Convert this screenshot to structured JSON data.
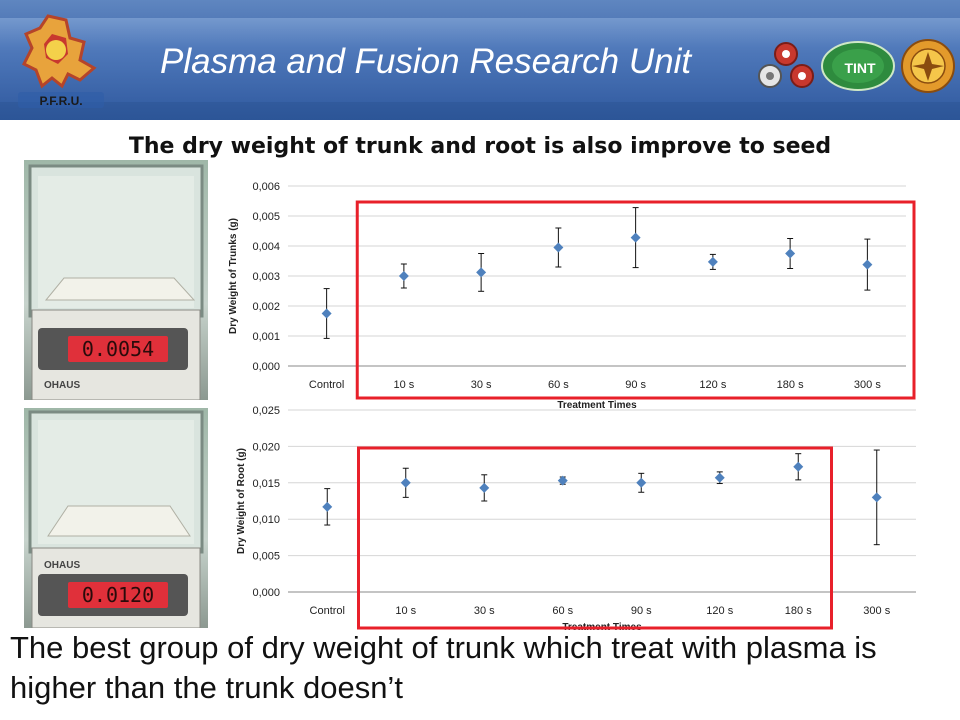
{
  "header": {
    "title": "Plasma and Fusion Research Unit",
    "left_logo_text": "P.F.R.U.",
    "right_logo_text": "TINT"
  },
  "slide_title": "The  dry weight of trunk and root is also improve to seed",
  "photos": [
    {
      "readout": "0.0054",
      "brand": "OHAUS"
    },
    {
      "readout": "0.0120",
      "brand": "OHAUS"
    }
  ],
  "chart_data": [
    {
      "type": "scatter",
      "categories": [
        "Control",
        "10 s",
        "30 s",
        "60 s",
        "90 s",
        "120 s",
        "180 s",
        "300 s"
      ],
      "values": [
        0.00175,
        0.003,
        0.00312,
        0.00395,
        0.00428,
        0.00347,
        0.00375,
        0.00338
      ],
      "errors": [
        0.00083,
        0.0004,
        0.00063,
        0.00065,
        0.001,
        0.00025,
        0.0005,
        0.00085
      ],
      "xlabel": "Treatment Times",
      "ylabel": "Dry Weight of Trunks (g)",
      "ylim": [
        0,
        0.006
      ],
      "yticks": [
        "0,000",
        "0,001",
        "0,002",
        "0,003",
        "0,004",
        "0,005",
        "0,006"
      ],
      "grid": true,
      "color": "#4f81bd",
      "highlight": {
        "from": "10 s",
        "to": "300 s",
        "color": "#e8202a"
      }
    },
    {
      "type": "scatter",
      "categories": [
        "Control",
        "10 s",
        "30 s",
        "60 s",
        "90 s",
        "120 s",
        "180 s",
        "300 s"
      ],
      "values": [
        0.0117,
        0.015,
        0.0143,
        0.0153,
        0.015,
        0.0157,
        0.0172,
        0.013
      ],
      "errors": [
        0.0025,
        0.002,
        0.0018,
        0.0005,
        0.0013,
        0.0008,
        0.0018,
        0.0065
      ],
      "xlabel": "Treatment Times",
      "ylabel": "Dry Weight of Root (g)",
      "ylim": [
        0,
        0.025
      ],
      "yticks": [
        "0,000",
        "0,005",
        "0,010",
        "0,015",
        "0,020",
        "0,025"
      ],
      "grid": true,
      "color": "#4f81bd",
      "highlight": {
        "from": "10 s",
        "to": "180 s",
        "color": "#e8202a"
      }
    }
  ],
  "footer_text": "The best group of dry weight of trunk which treat with plasma is higher than the trunk doesn’t"
}
